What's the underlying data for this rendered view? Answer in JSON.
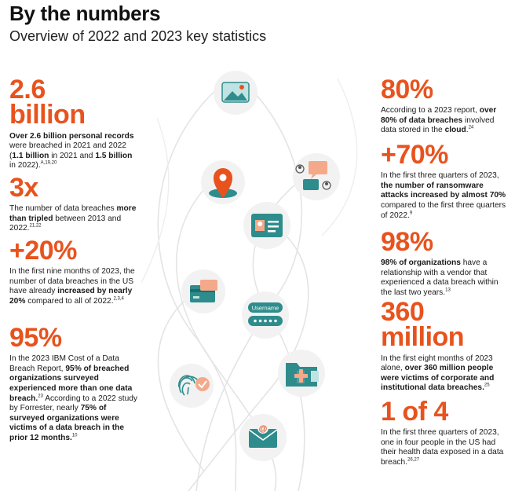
{
  "header": {
    "title": "By the numbers",
    "subtitle": "Overview of 2022 and 2023 key statistics"
  },
  "left_stats": [
    {
      "value": "2.6 billion",
      "value_line1": "2.6",
      "value_line2": "billion",
      "parts": [
        {
          "t": "Over 2.6 billion personal records",
          "b": true
        },
        {
          "t": " were breached in 2021 and 2022 (",
          "b": false
        },
        {
          "t": "1.1 billion",
          "b": true
        },
        {
          "t": " in 2021 and ",
          "b": false
        },
        {
          "t": "1.5 billion",
          "b": true
        },
        {
          "t": " in 2022).",
          "b": false
        },
        {
          "t": "A,19,20",
          "sup": true
        }
      ]
    },
    {
      "value": "3x",
      "parts": [
        {
          "t": "The number of data breaches ",
          "b": false
        },
        {
          "t": "more than tripled",
          "b": true
        },
        {
          "t": " between 2013 and 2022.",
          "b": false
        },
        {
          "t": "21,22",
          "sup": true
        }
      ]
    },
    {
      "value": "+20%",
      "parts": [
        {
          "t": "In the first nine months of 2023, the number of data breaches in the US have already ",
          "b": false
        },
        {
          "t": "increased by nearly 20%",
          "b": true
        },
        {
          "t": " compared to all of 2022.",
          "b": false
        },
        {
          "t": "2,3,4",
          "sup": true
        }
      ]
    },
    {
      "value": "95%",
      "parts": [
        {
          "t": "In the 2023 IBM Cost of a Data Breach Report, ",
          "b": false
        },
        {
          "t": "95% of breached organizations surveyed experienced more than one data breach.",
          "b": true
        },
        {
          "t": "23",
          "sup": true
        },
        {
          "t": " According to a 2022 study by Forrester, nearly ",
          "b": false
        },
        {
          "t": "75% of surveyed organizations were victims of a data breach in the prior 12 months.",
          "b": true
        },
        {
          "t": "10",
          "sup": true
        }
      ]
    }
  ],
  "right_stats": [
    {
      "value": "80%",
      "parts": [
        {
          "t": "According to a 2023 report, ",
          "b": false
        },
        {
          "t": "over 80% of data breaches",
          "b": true
        },
        {
          "t": " involved data stored in the ",
          "b": false
        },
        {
          "t": "cloud",
          "b": true
        },
        {
          "t": ".",
          "b": false
        },
        {
          "t": "24",
          "sup": true
        }
      ]
    },
    {
      "value": "+70%",
      "parts": [
        {
          "t": "In the first three quarters of 2023, ",
          "b": false
        },
        {
          "t": "the number of ransomware attacks increased by almost 70%",
          "b": true
        },
        {
          "t": " compared to the first three quarters of 2022.",
          "b": false
        },
        {
          "t": "9",
          "sup": true
        }
      ]
    },
    {
      "value": "98%",
      "parts": [
        {
          "t": "98% of organizations",
          "b": true
        },
        {
          "t": " have a relationship with a vendor that experienced a data breach within the last two years.",
          "b": false
        },
        {
          "t": "13",
          "sup": true
        }
      ]
    },
    {
      "value": "360 million",
      "value_line1": "360",
      "value_line2": "million",
      "parts": [
        {
          "t": "In the first eight months of 2023 alone, ",
          "b": false
        },
        {
          "t": "over 360 million people were victims of corporate and institutional data breaches.",
          "b": true
        },
        {
          "t": "25",
          "sup": true
        }
      ]
    },
    {
      "value": "1 of 4",
      "parts": [
        {
          "t": "In the first three quarters of 2023, one in four people in the US had their health data exposed in a data breach.",
          "b": false
        },
        {
          "t": "26,27",
          "sup": true
        }
      ]
    }
  ],
  "illustration": {
    "username_label": "Username",
    "icons": [
      "image-icon",
      "location-pin-icon",
      "chat-icon",
      "id-card-icon",
      "credit-card-icon",
      "login-icon",
      "medical-folder-icon",
      "fingerprint-icon",
      "email-icon"
    ],
    "colors": {
      "accent": "#e8531d",
      "teal": "#2f8c8c",
      "light_teal": "#bfe3e3",
      "circle": "#f2f2f2"
    }
  }
}
